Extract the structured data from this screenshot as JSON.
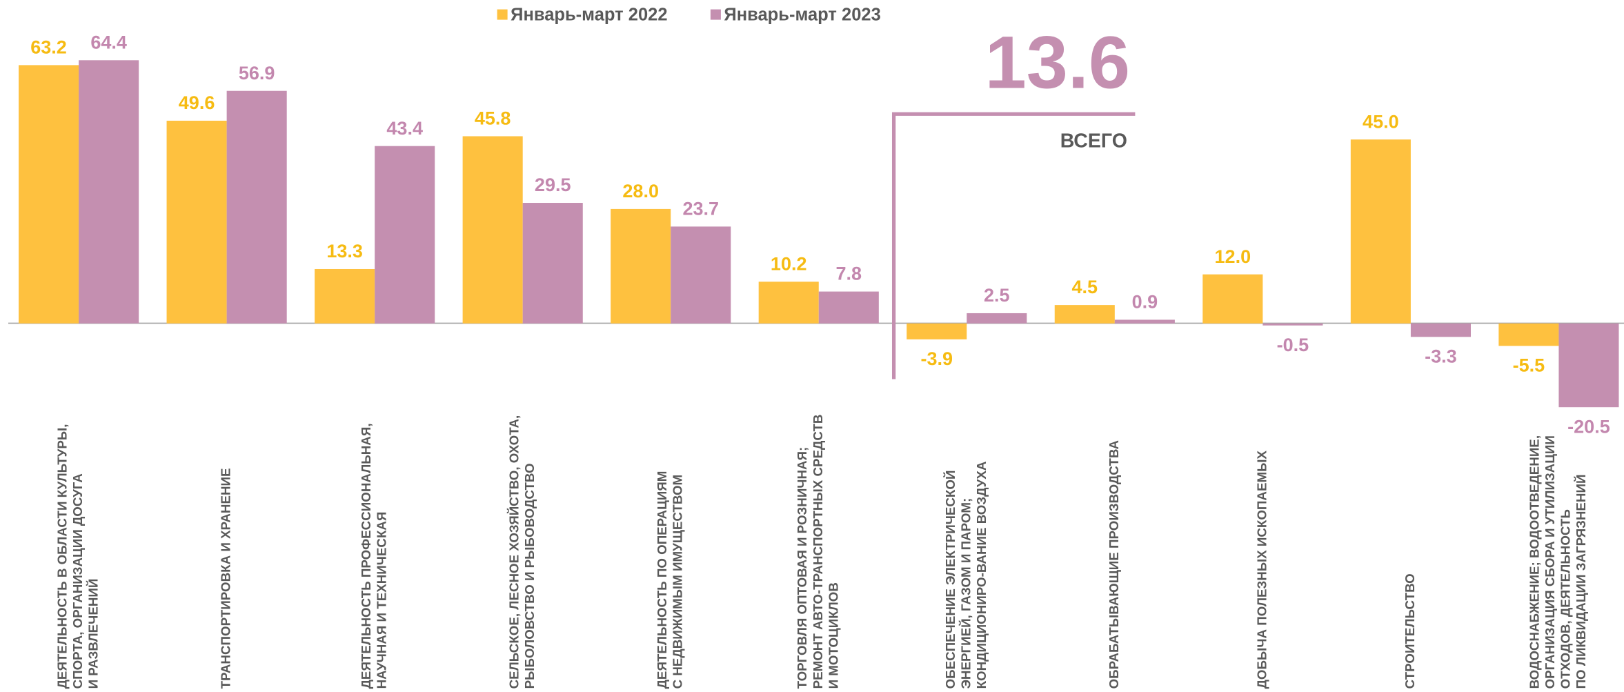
{
  "chart_data": {
    "type": "bar",
    "categories": [
      "ДЕЯТЕЛЬНОСТЬ В ОБЛАСТИ КУЛЬТУРЫ,\nСПОРТА, ОРГАНИЗАЦИИ ДОСУГА\nИ РАЗВЛЕЧЕНИЙ",
      "ТРАНСПОРТИРОВКА И ХРАНЕНИЕ",
      "ДЕЯТЕЛЬНОСТЬ ПРОФЕССИОНАЛЬНАЯ,\nНАУЧНАЯ И ТЕХНИЧЕСКАЯ",
      "СЕЛЬСКОЕ, ЛЕСНОЕ ХОЗЯЙСТВО, ОХОТА,\nРЫБОЛОВСТВО И РЫБОВОДСТВО",
      "ДЕЯТЕЛЬНОСТЬ ПО ОПЕРАЦИЯМ\nС НЕДВИЖИМЫМ ИМУЩЕСТВОМ",
      "ТОРГОВЛЯ ОПТОВАЯ И РОЗНИЧНАЯ;\nРЕМОНТ  АВТО-ТРАНСПОРТНЫХ СРЕДСТВ\nИ МОТОЦИКЛОВ",
      "ОБЕСПЕЧЕНИЕ ЭЛЕКТРИЧЕСКОЙ\nЭНЕРГИЕЙ, ГАЗОМ И ПАРОМ;\nКОНДИЦИОНИРО-ВАНИЕ ВОЗДУХА",
      "ОБРАБАТЫВАЮЩИЕ ПРОИЗВОДСТВА",
      "ДОБЫЧА ПОЛЕЗНЫХ ИСКОПАЕМЫХ",
      "СТРОИТЕЛЬСТВО",
      "ВОДОСНАБЖЕНИЕ; ВОДООТВЕДЕНИЕ,\nОРГАНИЗАЦИЯ СБОРА И УТИЛИЗАЦИИ\nОТХОДОВ, ДЕЯТЕЛЬНОСТЬ\nПО ЛИКВИДАЦИИ ЗАГРЯЗНЕНИЙ"
    ],
    "series": [
      {
        "name": "Январь-март 2022",
        "color": "#FEC13F",
        "label_color": "#F6BB12",
        "values": [
          63.2,
          49.6,
          13.3,
          45.8,
          28.0,
          10.2,
          -3.9,
          4.5,
          12.0,
          45.0,
          -5.5
        ],
        "value_labels": [
          "63.2",
          "49.6",
          "13.3",
          "45.8",
          "28.0",
          "10.2",
          "-3.9",
          "4.5",
          "12.0",
          "45.0",
          "-5.5"
        ]
      },
      {
        "name": "Январь-март 2023",
        "color": "#C48FB0",
        "label_color": "#C387AE",
        "values": [
          64.4,
          56.9,
          43.4,
          29.5,
          23.7,
          7.8,
          2.5,
          0.9,
          -0.5,
          -3.3,
          -20.5
        ],
        "value_labels": [
          "64.4",
          "56.9",
          "43.4",
          "29.5",
          "23.7",
          "7.8",
          "2.5",
          "0.9",
          "-0.5",
          "-3.3",
          "-20.5"
        ]
      }
    ],
    "ylim": [
      -22,
      70
    ],
    "annotations": [
      {
        "text": 13.6
      },
      {
        "text": "ВСЕГО"
      }
    ]
  }
}
